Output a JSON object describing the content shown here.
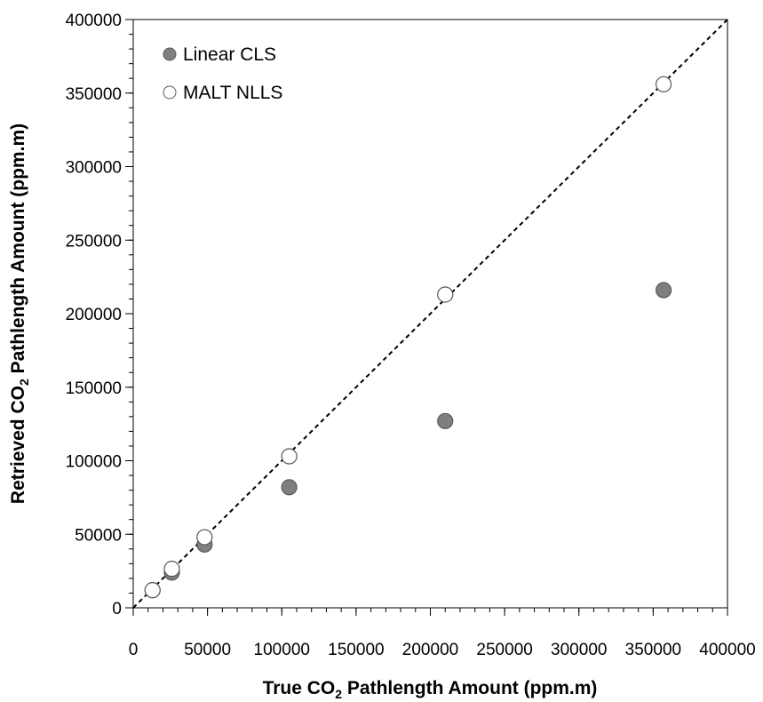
{
  "chart_data": {
    "type": "scatter",
    "xlabel": {
      "pre": "True CO",
      "sub": "2",
      "post": " Pathlength Amount (ppm.m)"
    },
    "ylabel": {
      "pre": "Retrieved CO",
      "sub": "2",
      "post": " Pathlength Amount (ppm.m)"
    },
    "xlim": [
      0,
      400000
    ],
    "ylim": [
      0,
      400000
    ],
    "xticks": [
      "0",
      "50000",
      "100000",
      "150000",
      "200000",
      "250000",
      "300000",
      "350000",
      "400000"
    ],
    "yticks": [
      "0",
      "50000",
      "100000",
      "150000",
      "200000",
      "250000",
      "300000",
      "350000",
      "400000"
    ],
    "grid": false,
    "legend_position": "top-left",
    "reference_line": {
      "style": "dashed",
      "from": [
        0,
        0
      ],
      "to": [
        400000,
        400000
      ]
    },
    "series": [
      {
        "name": "Linear CLS",
        "marker": "filled-circle",
        "color": "#7f7f7f",
        "points": [
          {
            "x": 13000,
            "y": 12000
          },
          {
            "x": 26000,
            "y": 24000
          },
          {
            "x": 48000,
            "y": 43000
          },
          {
            "x": 105000,
            "y": 82000
          },
          {
            "x": 210000,
            "y": 127000
          },
          {
            "x": 357000,
            "y": 216000
          }
        ]
      },
      {
        "name": "MALT NLLS",
        "marker": "open-circle",
        "color": "#ffffff",
        "points": [
          {
            "x": 13000,
            "y": 12000
          },
          {
            "x": 26000,
            "y": 26500
          },
          {
            "x": 48000,
            "y": 48000
          },
          {
            "x": 105000,
            "y": 103000
          },
          {
            "x": 210000,
            "y": 213000
          },
          {
            "x": 357000,
            "y": 356000
          }
        ]
      }
    ]
  }
}
